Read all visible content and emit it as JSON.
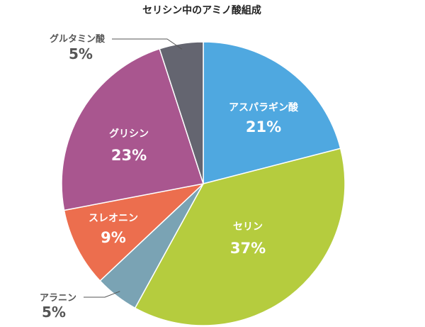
{
  "chart_data": {
    "type": "pie",
    "title": "セリシン中のアミノ酸組成",
    "slices": [
      {
        "label": "アスパラギン酸",
        "value": 21,
        "value_label": "21%",
        "color": "#4FA8E0",
        "label_position": "inside"
      },
      {
        "label": "セリン",
        "value": 37,
        "value_label": "37%",
        "color": "#B5CC3E",
        "label_position": "inside"
      },
      {
        "label": "アラニン",
        "value": 5,
        "value_label": "5%",
        "color": "#7AA3B4",
        "label_position": "outside"
      },
      {
        "label": "スレオニン",
        "value": 9,
        "value_label": "9%",
        "color": "#EC6E4E",
        "label_position": "inside"
      },
      {
        "label": "グリシン",
        "value": 23,
        "value_label": "23%",
        "color": "#A9568F",
        "label_position": "inside"
      },
      {
        "label": "グルタミン酸",
        "value": 5,
        "value_label": "5%",
        "color": "#646570",
        "label_position": "outside"
      }
    ],
    "start": "top",
    "direction": "clockwise",
    "legend": "none"
  }
}
